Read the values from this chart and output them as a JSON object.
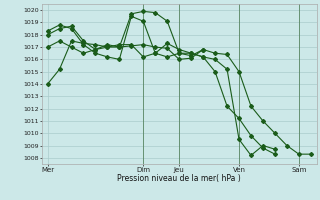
{
  "background_color": "#cce8e8",
  "grid_color": "#aacccc",
  "line_color": "#1a5c1a",
  "xlabel": "Pression niveau de la mer( hPa )",
  "ylim": [
    1007.5,
    1020.5
  ],
  "yticks": [
    1008,
    1009,
    1010,
    1011,
    1012,
    1013,
    1014,
    1015,
    1016,
    1017,
    1018,
    1019,
    1020
  ],
  "xtick_labels": [
    "Mer",
    "Dim",
    "Jeu",
    "Ven",
    "Sam"
  ],
  "xtick_positions": [
    0,
    8,
    11,
    16,
    21
  ],
  "vlines": [
    8,
    11,
    16,
    21
  ],
  "n_points": 23,
  "series": [
    [
      1014.0,
      1015.2,
      1017.5,
      1017.3,
      1017.2,
      1017.0,
      1017.0,
      1017.1,
      1017.2,
      1017.0,
      1016.9,
      1016.0,
      1016.1,
      1016.8,
      1016.5,
      1016.4,
      1015.0,
      1012.2,
      1011.0,
      1010.0,
      1009.0,
      1008.3,
      1008.3
    ],
    [
      1018.0,
      1018.5,
      1018.7,
      1017.5,
      1016.8,
      1017.2,
      1017.0,
      1019.7,
      1019.9,
      1019.8,
      1019.1,
      1016.5,
      1016.5,
      1016.2,
      1016.0,
      1015.2,
      1009.5,
      1008.2,
      1009.0,
      1008.7,
      null,
      null,
      null
    ],
    [
      1018.3,
      1018.8,
      1018.5,
      1017.2,
      1016.5,
      1016.2,
      1016.0,
      1019.5,
      1019.1,
      1016.5,
      1016.2,
      1016.5,
      1016.3,
      1016.8,
      null,
      null,
      null,
      null,
      null,
      null,
      null,
      null,
      null
    ],
    [
      1017.0,
      1017.5,
      1017.0,
      1016.5,
      1016.8,
      1017.0,
      1017.2,
      1017.2,
      1016.2,
      1016.5,
      1017.3,
      1016.8,
      1016.5,
      1016.2,
      1015.0,
      1012.2,
      1011.2,
      1009.8,
      1008.8,
      1008.3,
      null,
      null,
      null
    ]
  ]
}
